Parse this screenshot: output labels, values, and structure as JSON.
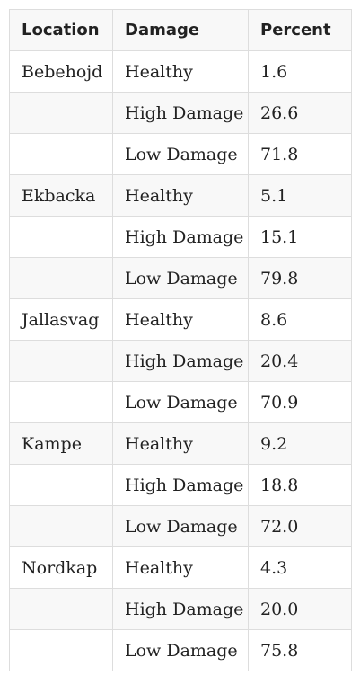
{
  "table": {
    "headers": [
      "Location",
      "Damage",
      "Percent"
    ],
    "rows": [
      [
        "Bebehojd",
        "Healthy",
        "1.6"
      ],
      [
        "",
        "High Damage",
        "26.6"
      ],
      [
        "",
        "Low Damage",
        "71.8"
      ],
      [
        "Ekbacka",
        "Healthy",
        "5.1"
      ],
      [
        "",
        "High Damage",
        "15.1"
      ],
      [
        "",
        "Low Damage",
        "79.8"
      ],
      [
        "Jallasvag",
        "Healthy",
        "8.6"
      ],
      [
        "",
        "High Damage",
        "20.4"
      ],
      [
        "",
        "Low Damage",
        "70.9"
      ],
      [
        "Kampe",
        "Healthy",
        "9.2"
      ],
      [
        "",
        "High Damage",
        "18.8"
      ],
      [
        "",
        "Low Damage",
        "72.0"
      ],
      [
        "Nordkap",
        "Healthy",
        "4.3"
      ],
      [
        "",
        "High Damage",
        "20.0"
      ],
      [
        "",
        "Low Damage",
        "75.8"
      ]
    ]
  }
}
